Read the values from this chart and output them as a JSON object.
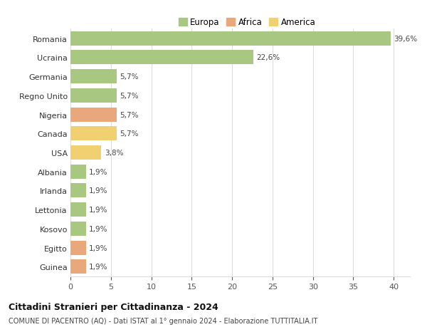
{
  "countries": [
    "Romania",
    "Ucraina",
    "Germania",
    "Regno Unito",
    "Nigeria",
    "Canada",
    "USA",
    "Albania",
    "Irlanda",
    "Lettonia",
    "Kosovo",
    "Egitto",
    "Guinea"
  ],
  "values": [
    39.6,
    22.6,
    5.7,
    5.7,
    5.7,
    5.7,
    3.8,
    1.9,
    1.9,
    1.9,
    1.9,
    1.9,
    1.9
  ],
  "labels": [
    "39,6%",
    "22,6%",
    "5,7%",
    "5,7%",
    "5,7%",
    "5,7%",
    "3,8%",
    "1,9%",
    "1,9%",
    "1,9%",
    "1,9%",
    "1,9%",
    "1,9%"
  ],
  "colors": [
    "#a8c882",
    "#a8c882",
    "#a8c882",
    "#a8c882",
    "#e8a87c",
    "#f0d070",
    "#f0d070",
    "#a8c882",
    "#a8c882",
    "#a8c882",
    "#a8c882",
    "#e8a87c",
    "#e8a87c"
  ],
  "legend_labels": [
    "Europa",
    "Africa",
    "America"
  ],
  "legend_colors": [
    "#a8c882",
    "#e8a87c",
    "#f0d070"
  ],
  "title": "Cittadini Stranieri per Cittadinanza - 2024",
  "subtitle": "COMUNE DI PACENTRO (AQ) - Dati ISTAT al 1° gennaio 2024 - Elaborazione TUTTITALIA.IT",
  "xlim": [
    0,
    42
  ],
  "xticks": [
    0,
    5,
    10,
    15,
    20,
    25,
    30,
    35,
    40
  ],
  "background_color": "#ffffff",
  "grid_color": "#dddddd",
  "bar_height": 0.75
}
